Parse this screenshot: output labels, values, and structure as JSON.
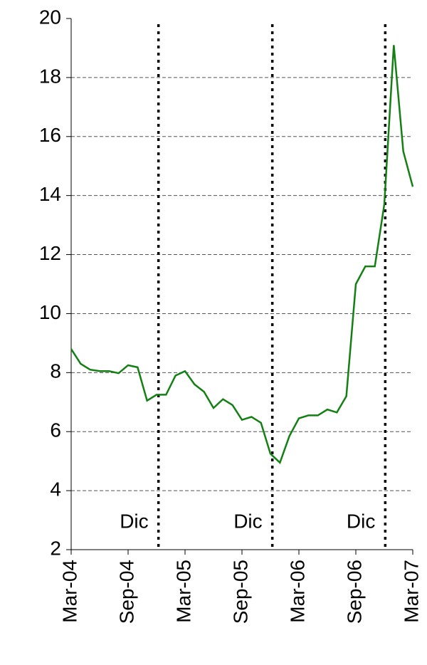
{
  "chart_data": {
    "type": "line",
    "categories": [
      "Mar-04",
      null,
      null,
      null,
      null,
      null,
      "Sep-04",
      null,
      null,
      null,
      null,
      null,
      "Mar-05",
      null,
      null,
      null,
      null,
      null,
      "Sep-05",
      null,
      null,
      null,
      null,
      null,
      "Mar-06",
      null,
      null,
      null,
      null,
      null,
      "Sep-06",
      null,
      null,
      null,
      null,
      null,
      "Mar-07"
    ],
    "series": [
      {
        "color": "#138013",
        "values": [
          8.8,
          8.3,
          8.1,
          8.05,
          8.05,
          7.98,
          8.25,
          8.18,
          7.05,
          7.25,
          7.25,
          7.9,
          8.05,
          7.6,
          7.35,
          6.8,
          7.1,
          6.9,
          6.4,
          6.5,
          6.3,
          5.25,
          4.95,
          5.85,
          6.45,
          6.55,
          6.55,
          6.75,
          6.65,
          7.2,
          11,
          11.6,
          11.6,
          13.7,
          19.1,
          15.5,
          14.3
        ]
      }
    ],
    "ylim": [
      2,
      20
    ],
    "yticks": [
      2,
      4,
      6,
      8,
      10,
      12,
      14,
      16,
      18,
      20
    ],
    "grid": true,
    "annotations": [
      {
        "text": "Dic",
        "x": 9.2
      },
      {
        "text": "Dic",
        "x": 21.2
      },
      {
        "text": "Dic",
        "x": 33.1
      }
    ]
  }
}
